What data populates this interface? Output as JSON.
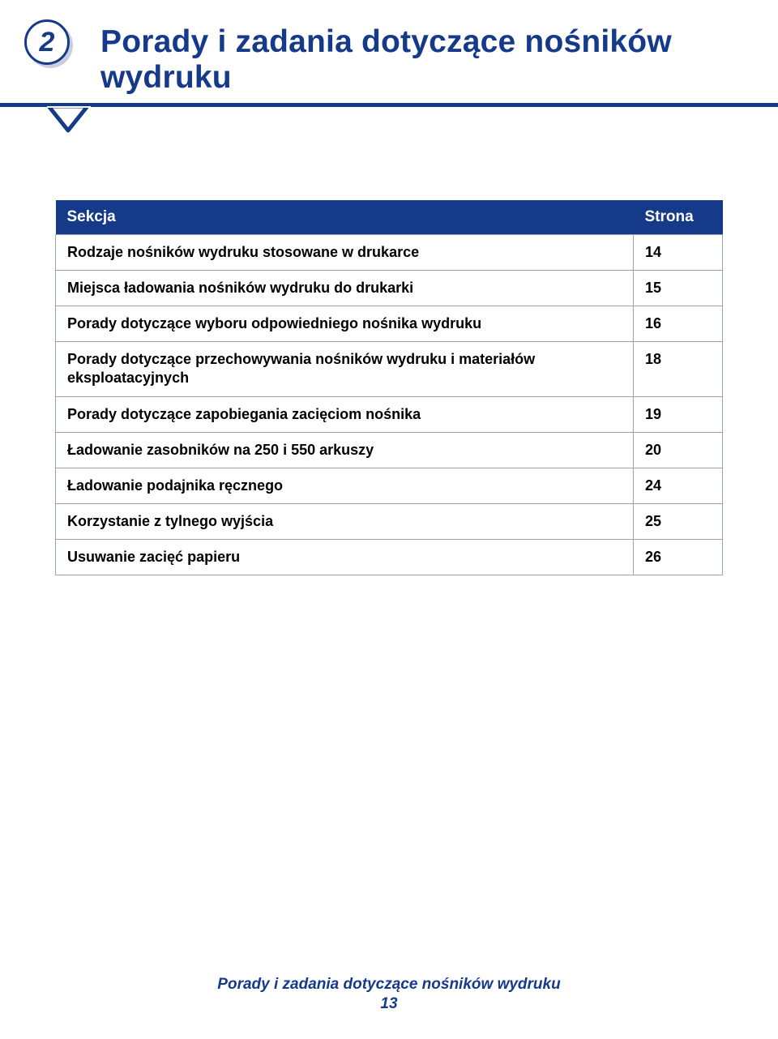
{
  "colors": {
    "brand": "#163a8a",
    "badge_shadow": "#c9cfdc",
    "table_border": "#9aa3b5",
    "background": "#ffffff",
    "text": "#000000"
  },
  "typography": {
    "title_fontsize_pt": 29,
    "table_header_fontsize_pt": 14,
    "table_cell_fontsize_pt": 13.5,
    "footer_fontsize_pt": 14,
    "font_family": "Arial"
  },
  "chapter": {
    "number": "2",
    "title": "Porady i zadania dotyczące nośników wydruku"
  },
  "toc": {
    "headers": {
      "section": "Sekcja",
      "page": "Strona"
    },
    "column_widths_pct": [
      87,
      13
    ],
    "rows": [
      {
        "label": "Rodzaje nośników wydruku stosowane w drukarce",
        "page": "14"
      },
      {
        "label": "Miejsca ładowania nośników wydruku do drukarki",
        "page": "15"
      },
      {
        "label": "Porady dotyczące wyboru odpowiedniego nośnika wydruku",
        "page": "16"
      },
      {
        "label": "Porady dotyczące przechowywania nośników wydruku i materiałów eksploatacyjnych",
        "page": "18"
      },
      {
        "label": "Porady dotyczące zapobiegania zacięciom nośnika",
        "page": "19"
      },
      {
        "label": "Ładowanie zasobników na 250 i 550 arkuszy",
        "page": "20"
      },
      {
        "label": "Ładowanie podajnika ręcznego",
        "page": "24"
      },
      {
        "label": "Korzystanie z tylnego wyjścia",
        "page": "25"
      },
      {
        "label": "Usuwanie zacięć papieru",
        "page": "26"
      }
    ]
  },
  "footer": {
    "title": "Porady i zadania dotyczące nośników wydruku",
    "page": "13"
  }
}
